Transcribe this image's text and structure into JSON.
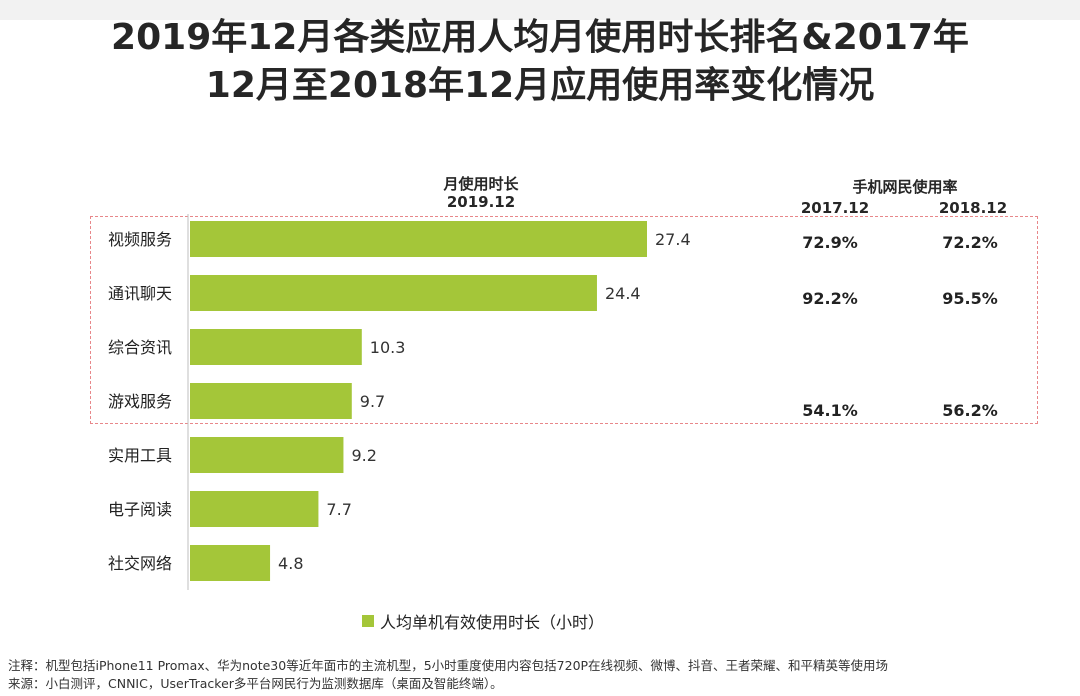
{
  "title_line1": "2019年12月各类应用人均月使用时长排名&2017年",
  "title_line2": "12月至2018年12月应用使用率变化情况",
  "left_header": {
    "line1": "月使用时长",
    "line2": "2019.12"
  },
  "right_header": {
    "title": "手机网民使用率",
    "col1": "2017.12",
    "col2": "2018.12"
  },
  "chart_data": {
    "type": "bar",
    "orientation": "horizontal",
    "categories": [
      "视频服务",
      "通讯聊天",
      "综合资讯",
      "游戏服务",
      "实用工具",
      "电子阅读",
      "社交网络"
    ],
    "series": [
      {
        "name": "人均单机有效使用时长（小时）",
        "values": [
          27.4,
          24.4,
          10.3,
          9.7,
          9.2,
          7.7,
          4.8
        ],
        "color": "#a4c639"
      }
    ],
    "xlim": [
      0,
      30
    ],
    "grid": false,
    "legend": "bottom"
  },
  "usage_rates": [
    {
      "v2017": "72.9%",
      "v2018": "72.2%"
    },
    {
      "v2017": "92.2%",
      "v2018": "95.5%"
    },
    {
      "v2017": "54.1%",
      "v2018": "56.2%"
    }
  ],
  "legend_label": "人均单机有效使用时长（小时）",
  "note": "注释：机型包括iPhone11 Promax、华为note30等近年面市的主流机型，5小时重度使用内容包括720P在线视频、微博、抖音、王者荣耀、和平精英等使用场",
  "source": "来源：小白测评，CNNIC，UserTracker多平台网民行为监测数据库（桌面及智能终端）。",
  "colors": {
    "bar": "#a4c639",
    "dash_box": "#e8878a"
  }
}
